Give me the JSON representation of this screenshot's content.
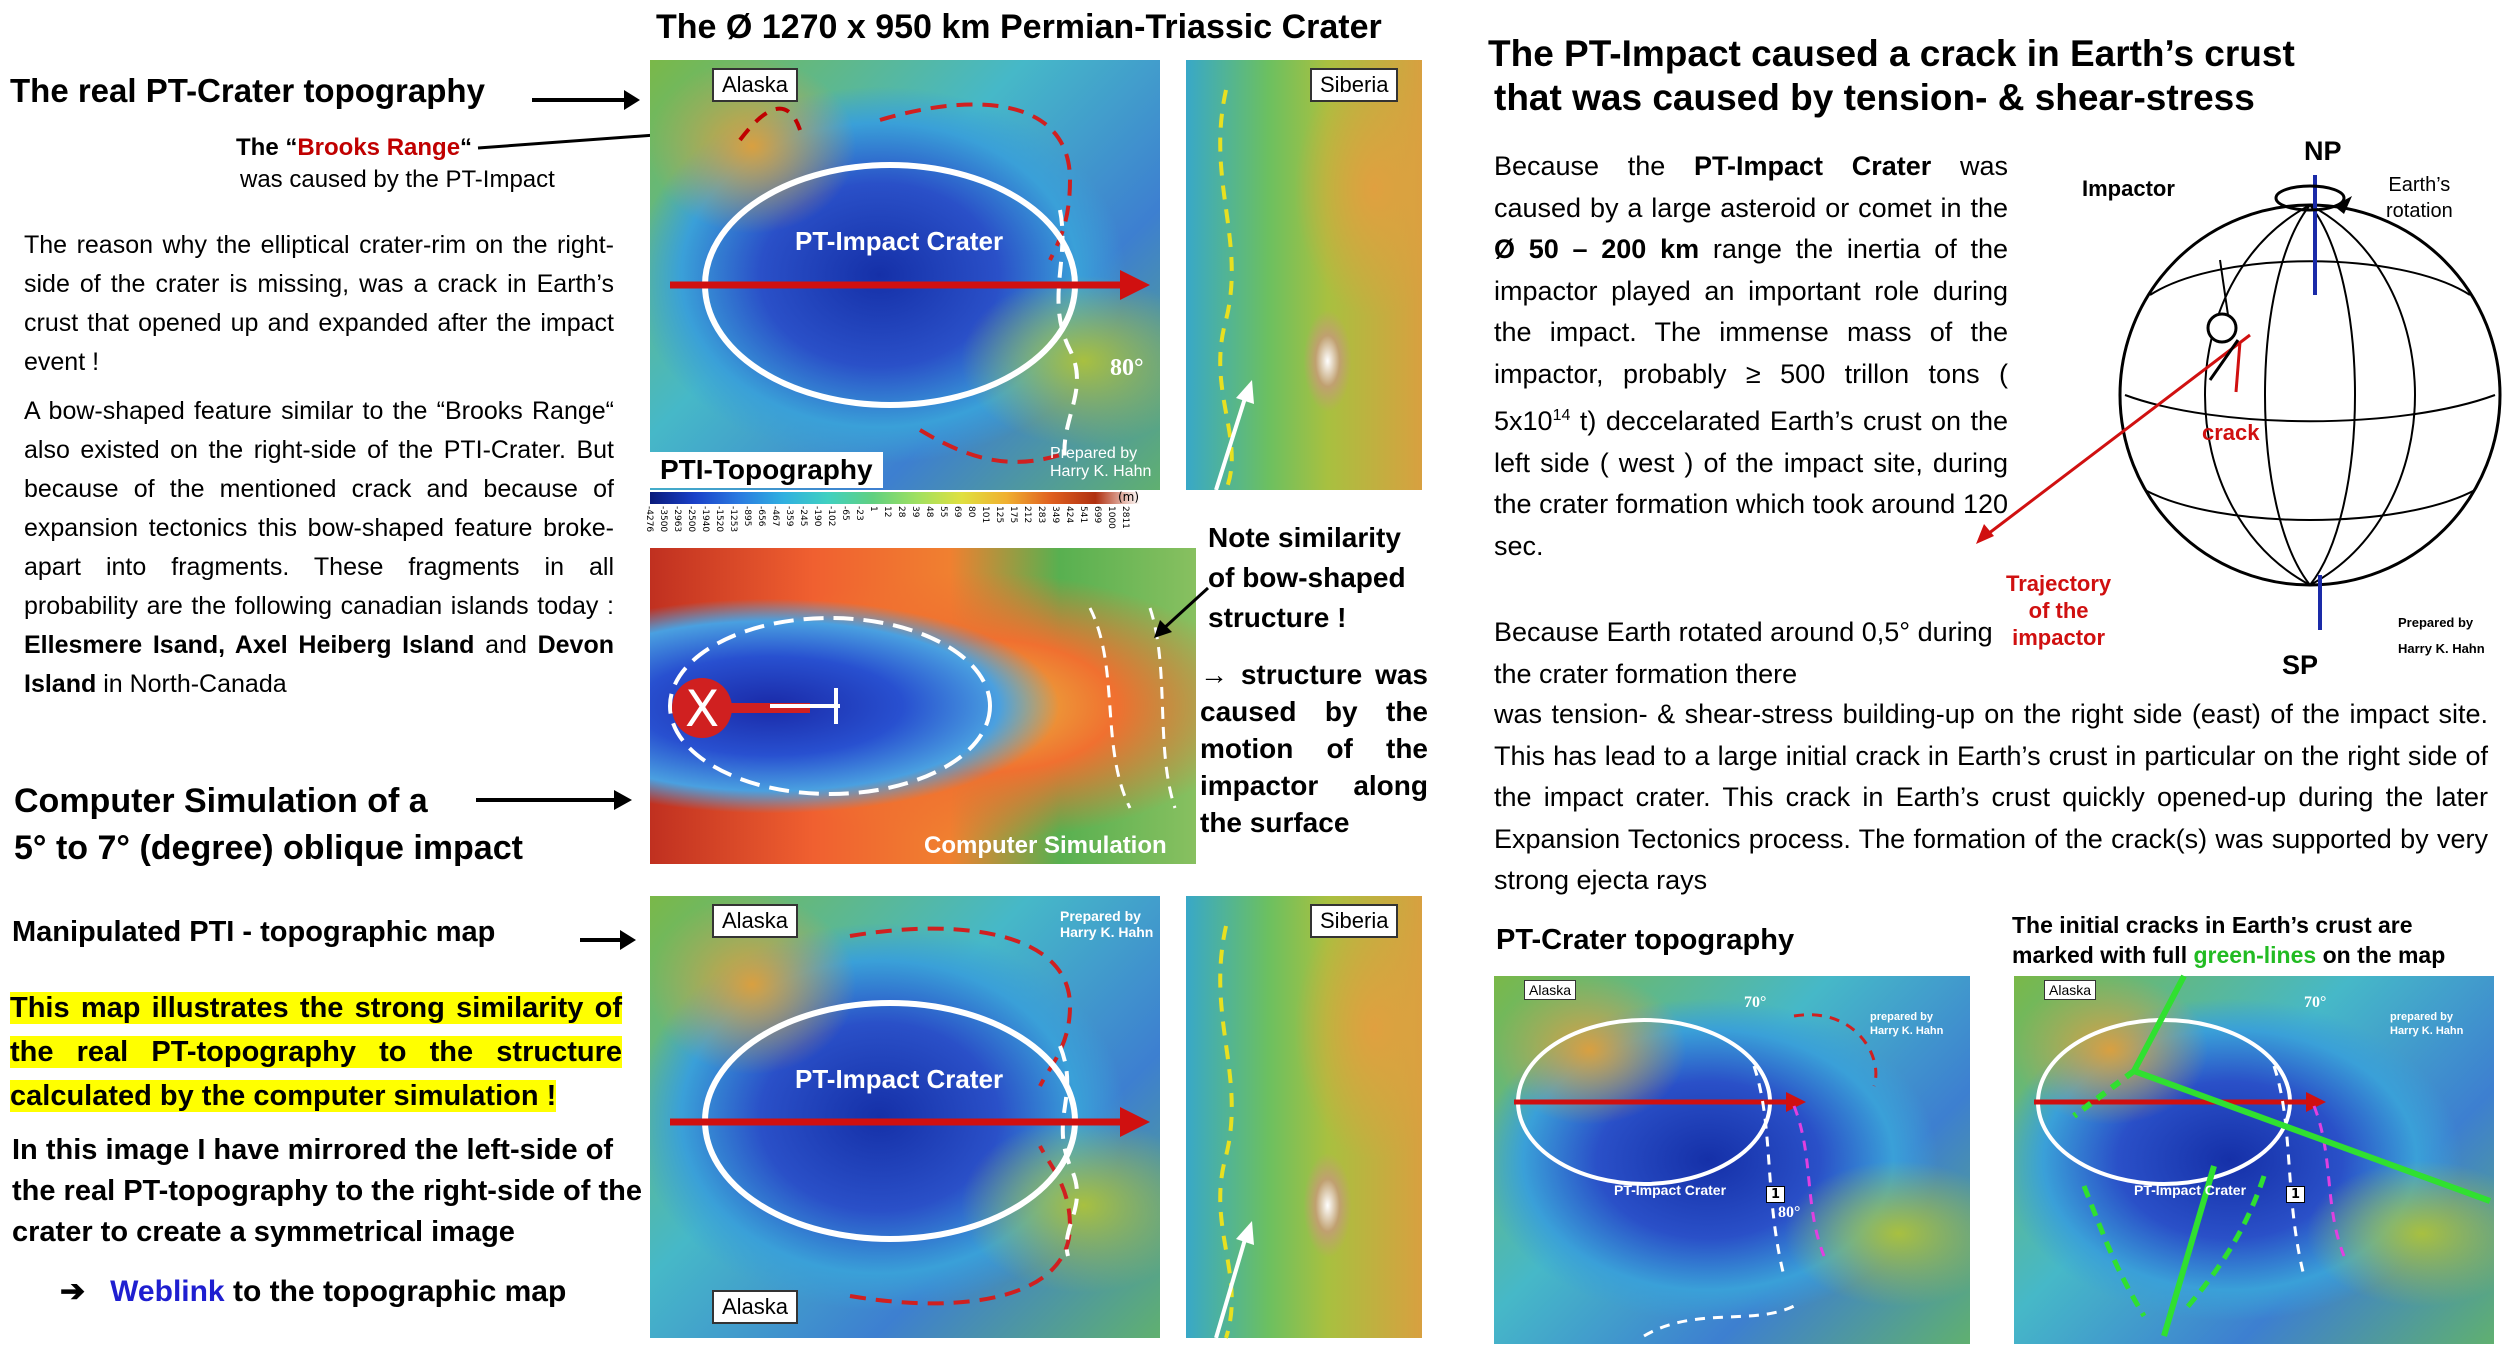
{
  "left": {
    "real_crater_label": "The real PT-Crater topography",
    "brooks_line1_prefix": "The “",
    "brooks_name": "Brooks Range",
    "brooks_line1_suffix": "“",
    "brooks_line2": "was caused by the PT-Impact",
    "para1": "The reason why the elliptical crater-rim on the right-side of the crater is missing, was a crack in Earth’s crust that opened up and expanded after the impact event !",
    "para2": "A bow-shaped feature similar to the “Brooks Range“ also existed on the right-side of the PTI-Crater. But because of the mentioned crack and because of expansion tectonics this bow-shaped feature broke-apart into fragments. These fragments in all probability are the following canadian islands today :",
    "islands_bold1": "Ellesmere Isand, Axel Heiberg Island",
    "islands_and": " and",
    "islands_bold2": "Devon Island",
    "islands_end": " in North-Canada",
    "sim_label_line1": "Computer Simulation of a",
    "sim_label_line2": "5° to 7° (degree) oblique impact",
    "manip_label": "Manipulated PTI - topographic map",
    "highlight": "This map illustrates the strong similarity of the real PT-topography to the structure calculated by the computer simulation !",
    "mirror_text": "In this image I have mirrored the left-side of the real PT-topography to the right-side of the crater to create a symmetrical image",
    "weblink_arrow": "➔",
    "weblink_word": "Weblink",
    "weblink_rest": " to the topographic map"
  },
  "center": {
    "title": "The Ø 1270 x 950 km Permian-Triassic Crater",
    "alaska": "Alaska",
    "siberia": "Siberia",
    "crater_label": "PT-Impact Crater",
    "degree": "80°",
    "prepared": "Prepared by",
    "author": "Harry K. Hahn",
    "pti_topo": "PTI-Topography",
    "scale_unit": "(m)",
    "scale_ticks": [
      "-4276",
      "-3500",
      "-2963",
      "-2500",
      "-1940",
      "-1520",
      "-1253",
      "-895",
      "-656",
      "-467",
      "-359",
      "-245",
      "-190",
      "-102",
      "-65",
      "-23",
      "1",
      "12",
      "28",
      "39",
      "48",
      "55",
      "69",
      "80",
      "101",
      "125",
      "175",
      "212",
      "283",
      "349",
      "424",
      "541",
      "699",
      "1000",
      "2811"
    ],
    "sim_caption": "Computer Simulation",
    "note_line1": "Note similarity",
    "note_line2": "of bow-shaped",
    "note_line3": "structure !",
    "structure_text": "→ structure was caused by the motion of the impactor along the surface",
    "alaska_bottom": "Alaska"
  },
  "right": {
    "title_line1": "The PT-Impact caused a crack in Earth’s crust",
    "title_line2": "that was caused by tension- & shear-stress",
    "p1_a": "Because the ",
    "p1_b": "PT-Impact Crater",
    "p1_c": " was caused by a large asteroid or comet in the ",
    "p1_d": "Ø 50 – 200 km",
    "p1_e": " range the inertia of the impactor played an important role during the impact. The immense mass of the impactor, probably ≥ 500 trillon tons ( 5x10",
    "p1_sup": "14",
    "p1_f": " t) deccelarated Earth’s crust on the left side ( west ) of the impact site, during the crater formation which took around 120 sec.",
    "p2": "Because Earth rotated around 0,5° during the crater formation there",
    "p3": "was tension- & shear-stress building-up on the right side (east) of the impact site. This has lead to a large initial crack in Earth’s crust in particular on the right side of the impact crater. This crack in Earth’s crust quickly opened-up during the later Expansion Tectonics process. The formation of the crack(s) was supported by very strong ejecta rays",
    "globe": {
      "impactor": "Impactor",
      "np": "NP",
      "sp": "SP",
      "rotation_line1": "Earth’s",
      "rotation_line2": "rotation",
      "crack": "crack",
      "trajectory_line1": "Trajectory",
      "trajectory_line2": "of the",
      "trajectory_line3": "impactor",
      "prepared": "Prepared by",
      "author": "Harry K. Hahn"
    },
    "crater_topo_label": "PT-Crater topography",
    "cracks_line1": "The initial cracks in Earth’s crust are",
    "cracks_line2_a": "marked with full ",
    "cracks_line2_green": "green-lines",
    "cracks_line2_b": " on the map",
    "small_alaska": "Alaska",
    "small_deg": "70°",
    "small_deg2": "80°",
    "small_crater": "PT-Impact Crater",
    "small_num": "1",
    "small_prepared": "prepared by",
    "small_author": "Harry K. Hahn"
  },
  "colors": {
    "red_text": "#c00000",
    "blue_link": "#1f1fd0",
    "green_text": "#22bb22",
    "highlight": "#ffff00"
  }
}
